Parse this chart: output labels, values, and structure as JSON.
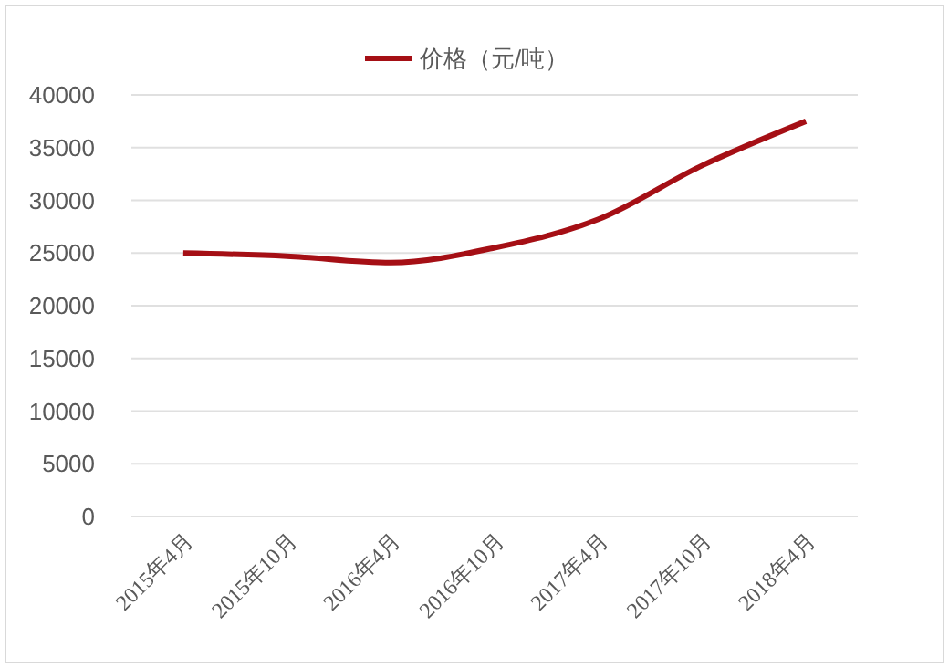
{
  "chart_data": {
    "type": "line",
    "categories": [
      "2015年4月",
      "2015年10月",
      "2016年4月",
      "2016年10月",
      "2017年4月",
      "2017年10月",
      "2018年4月"
    ],
    "series": [
      {
        "name": "价格（元/吨）",
        "color": "#a50f15",
        "values": [
          25000,
          24700,
          24100,
          25500,
          28200,
          33300,
          37500
        ]
      }
    ],
    "ylim": [
      0,
      40000
    ],
    "yticks": [
      0,
      5000,
      10000,
      15000,
      20000,
      25000,
      30000,
      35000,
      40000
    ],
    "grid": "y",
    "legend": "top",
    "marker": "none",
    "line_style": "solid"
  }
}
